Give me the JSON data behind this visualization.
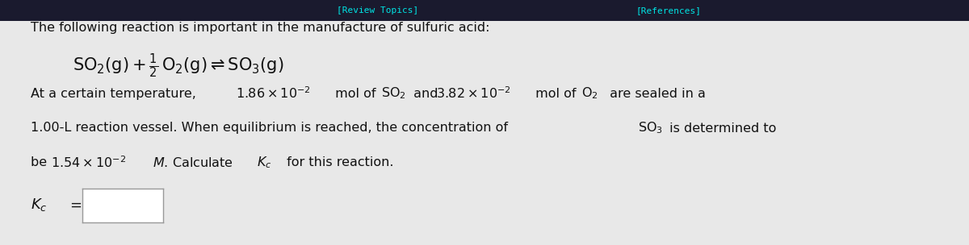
{
  "bg_color": "#e8e8e8",
  "top_bar_color": "#1a1a2e",
  "text_color": "#111111",
  "fig_width": 12.0,
  "fig_height": 3.04,
  "dpi": 100,
  "top_bar_text_color": "#00e5e5",
  "line1": "The following reaction is important in the manufacture of sulfuric acid:",
  "eq": "SO\\u2082(g) + ½ O\\u2082(g) ⇌ SO\\u2083(g)",
  "review_topics": "[Review Topics]",
  "references": "[References]"
}
